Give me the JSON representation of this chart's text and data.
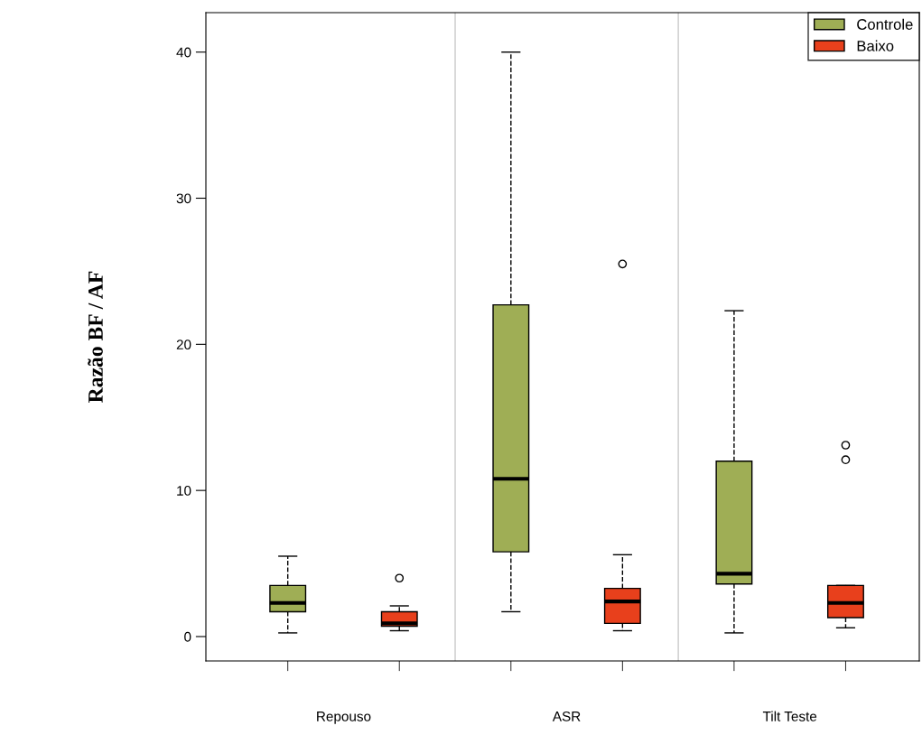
{
  "chart_data": {
    "type": "box",
    "ylabel": "Razão BF / AF",
    "categories": [
      "Repouso",
      "ASR",
      "Tilt Teste"
    ],
    "series": [
      {
        "name": "Controle",
        "color": "#9fae55",
        "boxes": [
          {
            "low": 0.25,
            "q1": 1.7,
            "median": 2.3,
            "q3": 3.5,
            "high": 5.5
          },
          {
            "low": 1.7,
            "q1": 5.8,
            "median": 10.8,
            "q3": 22.7,
            "high": 40.0
          },
          {
            "low": 0.25,
            "q1": 3.6,
            "median": 4.3,
            "q3": 12.0,
            "high": 22.3
          }
        ]
      },
      {
        "name": "Baixo",
        "color": "#e8401c",
        "boxes": [
          {
            "low": 0.4,
            "q1": 0.7,
            "median": 0.9,
            "q3": 1.7,
            "high": 2.1,
            "outliers": [
              4.0
            ]
          },
          {
            "low": 0.4,
            "q1": 0.9,
            "median": 2.4,
            "q3": 3.3,
            "high": 5.6,
            "outliers": [
              25.5
            ]
          },
          {
            "low": 0.6,
            "q1": 1.3,
            "median": 2.3,
            "q3": 3.5,
            "high": 3.5,
            "outliers": [
              12.1,
              13.1
            ]
          }
        ]
      }
    ],
    "ylim": [
      -1.67,
      42.7
    ],
    "yticks": [
      0,
      10,
      20,
      30,
      40
    ],
    "grid": false,
    "legend": "top right"
  }
}
